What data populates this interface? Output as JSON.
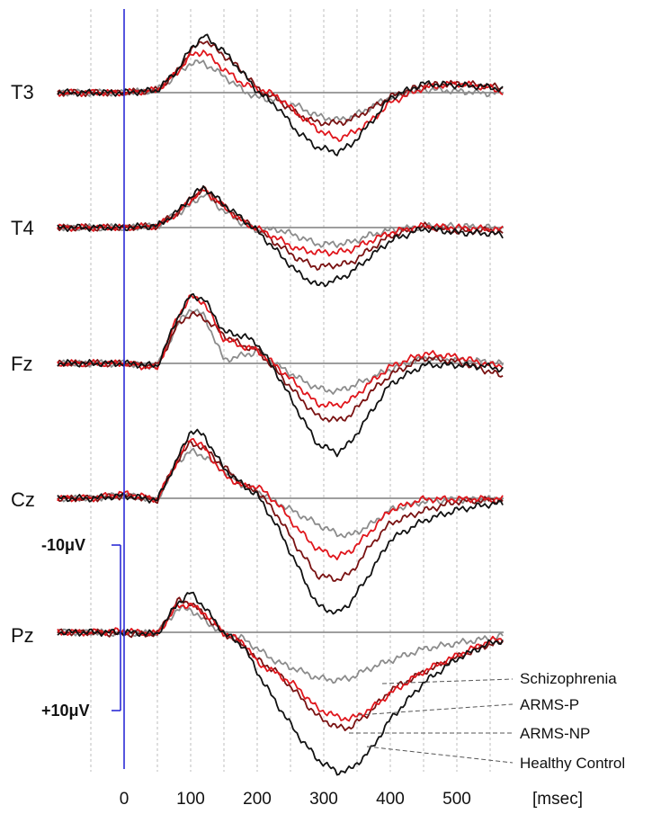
{
  "chart_data": {
    "type": "line",
    "x_unit": "[msec]",
    "x_ticks": [
      0,
      100,
      200,
      300,
      400,
      500
    ],
    "xlim": [
      -100,
      600
    ],
    "scale_bar": {
      "top_label": "-10μV",
      "bottom_label": "+10μV",
      "microvolts": 20
    },
    "colors": {
      "Schizophrenia": "#8c8c8c",
      "ARMS-P": "#e0161c",
      "ARMS-NP": "#7a1212",
      "Healthy Control": "#111111",
      "baseline": "#7f7f7f",
      "grid": "#bdbdbd",
      "stim": "#2b2bd6"
    },
    "x": [
      -100,
      -50,
      0,
      50,
      80,
      100,
      120,
      150,
      180,
      200,
      230,
      260,
      290,
      320,
      340,
      370,
      400,
      450,
      500,
      550,
      600
    ],
    "channels": [
      {
        "name": "T3",
        "series": [
          {
            "name": "Schizophrenia",
            "values": [
              0,
              0,
              0,
              -0.3,
              -2.2,
              -3.6,
              -3.6,
              -2.0,
              -0.2,
              0.6,
              0.9,
              1.6,
              2.8,
              3.3,
              3.0,
              1.8,
              0.5,
              -0.4,
              -0.2,
              0.1,
              -0.2
            ]
          },
          {
            "name": "ARMS-P",
            "values": [
              0,
              0,
              0,
              -0.3,
              -2.5,
              -4.5,
              -5.0,
              -2.8,
              -1.0,
              -0.5,
              0.4,
              2.5,
              4.4,
              5.6,
              5.0,
              3.5,
              1.2,
              -0.6,
              -1.1,
              -0.6,
              0.8
            ]
          },
          {
            "name": "ARMS-NP",
            "values": [
              0,
              0,
              0,
              -0.3,
              -2.6,
              -5.0,
              -6.4,
              -4.5,
              -2.5,
              -0.5,
              0.8,
              2.6,
              3.6,
              3.7,
              3.3,
              2.0,
              0.5,
              -0.9,
              -1.1,
              -0.8,
              -0.2
            ]
          },
          {
            "name": "Healthy Control",
            "values": [
              0,
              0,
              0,
              -0.3,
              -2.7,
              -5.3,
              -6.9,
              -5.0,
              -2.2,
              -0.2,
              1.7,
              4.7,
              6.6,
              7.2,
              6.4,
              3.7,
              0.6,
              -1.1,
              -0.9,
              -0.7,
              0.2
            ]
          }
        ]
      },
      {
        "name": "T4",
        "series": [
          {
            "name": "Schizophrenia",
            "values": [
              0,
              0,
              0,
              -0.2,
              -1.7,
              -2.7,
              -4.1,
              -2.0,
              -0.4,
              0.4,
              0.2,
              1.0,
              2.0,
              2.0,
              1.8,
              0.9,
              0.3,
              -0.1,
              -0.2,
              0,
              0
            ]
          },
          {
            "name": "ARMS-P",
            "values": [
              0,
              0,
              0,
              -0.2,
              -1.7,
              -3.3,
              -4.6,
              -2.5,
              -0.6,
              0.1,
              1.3,
              2.6,
              3.0,
              3.0,
              2.7,
              1.6,
              0.6,
              -0.2,
              0,
              0.2,
              0.3
            ]
          },
          {
            "name": "ARMS-NP",
            "values": [
              0,
              0,
              0,
              -0.2,
              -1.8,
              -3.5,
              -4.7,
              -2.5,
              -0.8,
              0.2,
              2.0,
              3.7,
              4.8,
              4.5,
              4.3,
              2.6,
              1.0,
              -0.2,
              0.5,
              0.3,
              1.1
            ]
          },
          {
            "name": "Healthy Control",
            "values": [
              0,
              0,
              0,
              -0.2,
              -1.9,
              -3.7,
              -4.9,
              -2.8,
              -0.9,
              0.4,
              2.9,
              5.4,
              7.0,
              6.3,
              5.5,
              3.5,
              1.6,
              0.1,
              0.6,
              0.7,
              1.3
            ]
          }
        ]
      },
      {
        "name": "Fz",
        "series": [
          {
            "name": "Schizophrenia",
            "values": [
              0,
              0,
              0,
              0.4,
              -4.7,
              -6.6,
              -5.8,
              -0.4,
              -1.0,
              -1.4,
              0.2,
              1.7,
              3.0,
              3.4,
              2.8,
              1.8,
              0.7,
              -0.6,
              -0.4,
              -0.2,
              0.6
            ]
          },
          {
            "name": "ARMS-P",
            "values": [
              0,
              0,
              0,
              0.6,
              -5.6,
              -8.1,
              -7.4,
              -2.9,
              -2.0,
              -1.6,
              0.4,
              2.6,
              4.9,
              5.1,
              4.5,
              2.3,
              0.4,
              -1.2,
              -0.8,
              0.2,
              0.3
            ]
          },
          {
            "name": "ARMS-NP",
            "values": [
              0,
              0,
              0,
              0.3,
              -4.6,
              -6.0,
              -5.5,
              -3.4,
              -2.1,
              -1.6,
              1.0,
              3.8,
              6.4,
              6.9,
              6.3,
              3.5,
              1.4,
              -0.7,
              -0.2,
              1.0,
              2.6
            ]
          },
          {
            "name": "Healthy Control",
            "values": [
              0,
              0,
              0,
              0.3,
              -5.5,
              -8.2,
              -7.8,
              -3.8,
              -3.3,
              -2.4,
              1.3,
              5.6,
              9.7,
              10.8,
              9.6,
              6.0,
              2.5,
              0.2,
              0.2,
              0.4,
              1.3
            ]
          }
        ]
      },
      {
        "name": "Cz",
        "series": [
          {
            "name": "Schizophrenia",
            "values": [
              0,
              0,
              -0.4,
              0.2,
              -4.4,
              -5.7,
              -5.1,
              -3.3,
              -1.5,
              -0.9,
              0.5,
              1.8,
              3.1,
              4.3,
              4.5,
              3.2,
              1.4,
              0.4,
              0.2,
              0.1,
              0
            ]
          },
          {
            "name": "ARMS-P",
            "values": [
              0,
              0,
              -0.6,
              0.1,
              -4.6,
              -7.4,
              -6.1,
              -2.8,
              -1.4,
              -1.5,
              0.6,
              3.6,
              6.1,
              7.1,
              6.4,
              4.0,
              1.4,
              0.1,
              0.1,
              0.1,
              0
            ]
          },
          {
            "name": "ARMS-NP",
            "values": [
              0,
              0,
              -0.3,
              0.2,
              -4.6,
              -6.7,
              -6.1,
              -3.8,
              -1.5,
              -0.9,
              2.0,
              5.9,
              9.3,
              9.8,
              9.1,
              5.7,
              3.0,
              1.5,
              0.4,
              0.2,
              0.3
            ]
          },
          {
            "name": "Healthy Control",
            "values": [
              0,
              0,
              -0.3,
              0.2,
              -4.7,
              -8.2,
              -7.6,
              -3.6,
              -1.5,
              -0.4,
              3.4,
              8.1,
              12.9,
              13.9,
              12.6,
              9.0,
              5.0,
              2.7,
              1.4,
              0.7,
              0.5
            ]
          }
        ]
      },
      {
        "name": "Pz",
        "series": [
          {
            "name": "Schizophrenia",
            "values": [
              0,
              0,
              0.1,
              0.1,
              -2.8,
              -2.8,
              -1.4,
              0.1,
              0.8,
              2.0,
              3.6,
              4.5,
              5.5,
              5.8,
              5.5,
              4.3,
              3.4,
              2.0,
              1.3,
              0.7,
              0
            ]
          },
          {
            "name": "ARMS-P",
            "values": [
              0,
              0,
              -0.2,
              0.2,
              -3.2,
              -3.3,
              -2.4,
              0.1,
              1.2,
              3.7,
              5.0,
              6.6,
              9.2,
              10.2,
              10.5,
              9.3,
              7.4,
              4.7,
              2.8,
              1.0,
              0.5
            ]
          },
          {
            "name": "ARMS-NP",
            "values": [
              0,
              0,
              0.2,
              0.2,
              -3.8,
              -3.6,
              -2.1,
              0.1,
              1.6,
              3.3,
              4.8,
              7.4,
              10.1,
              11.5,
              11.5,
              9.6,
              7.0,
              4.8,
              3.0,
              1.4,
              1.0
            ]
          },
          {
            "name": "Healthy Control",
            "values": [
              0,
              0,
              0,
              0.2,
              -3.5,
              -4.8,
              -3.1,
              0.1,
              1.7,
              4.8,
              8.7,
              12.3,
              15.3,
              16.9,
              16.6,
              14.3,
              10.5,
              6.1,
              3.2,
              1.3,
              0.5
            ]
          }
        ]
      }
    ],
    "legend": [
      "Schizophrenia",
      "ARMS-P",
      "ARMS-NP",
      "Healthy Control"
    ]
  }
}
